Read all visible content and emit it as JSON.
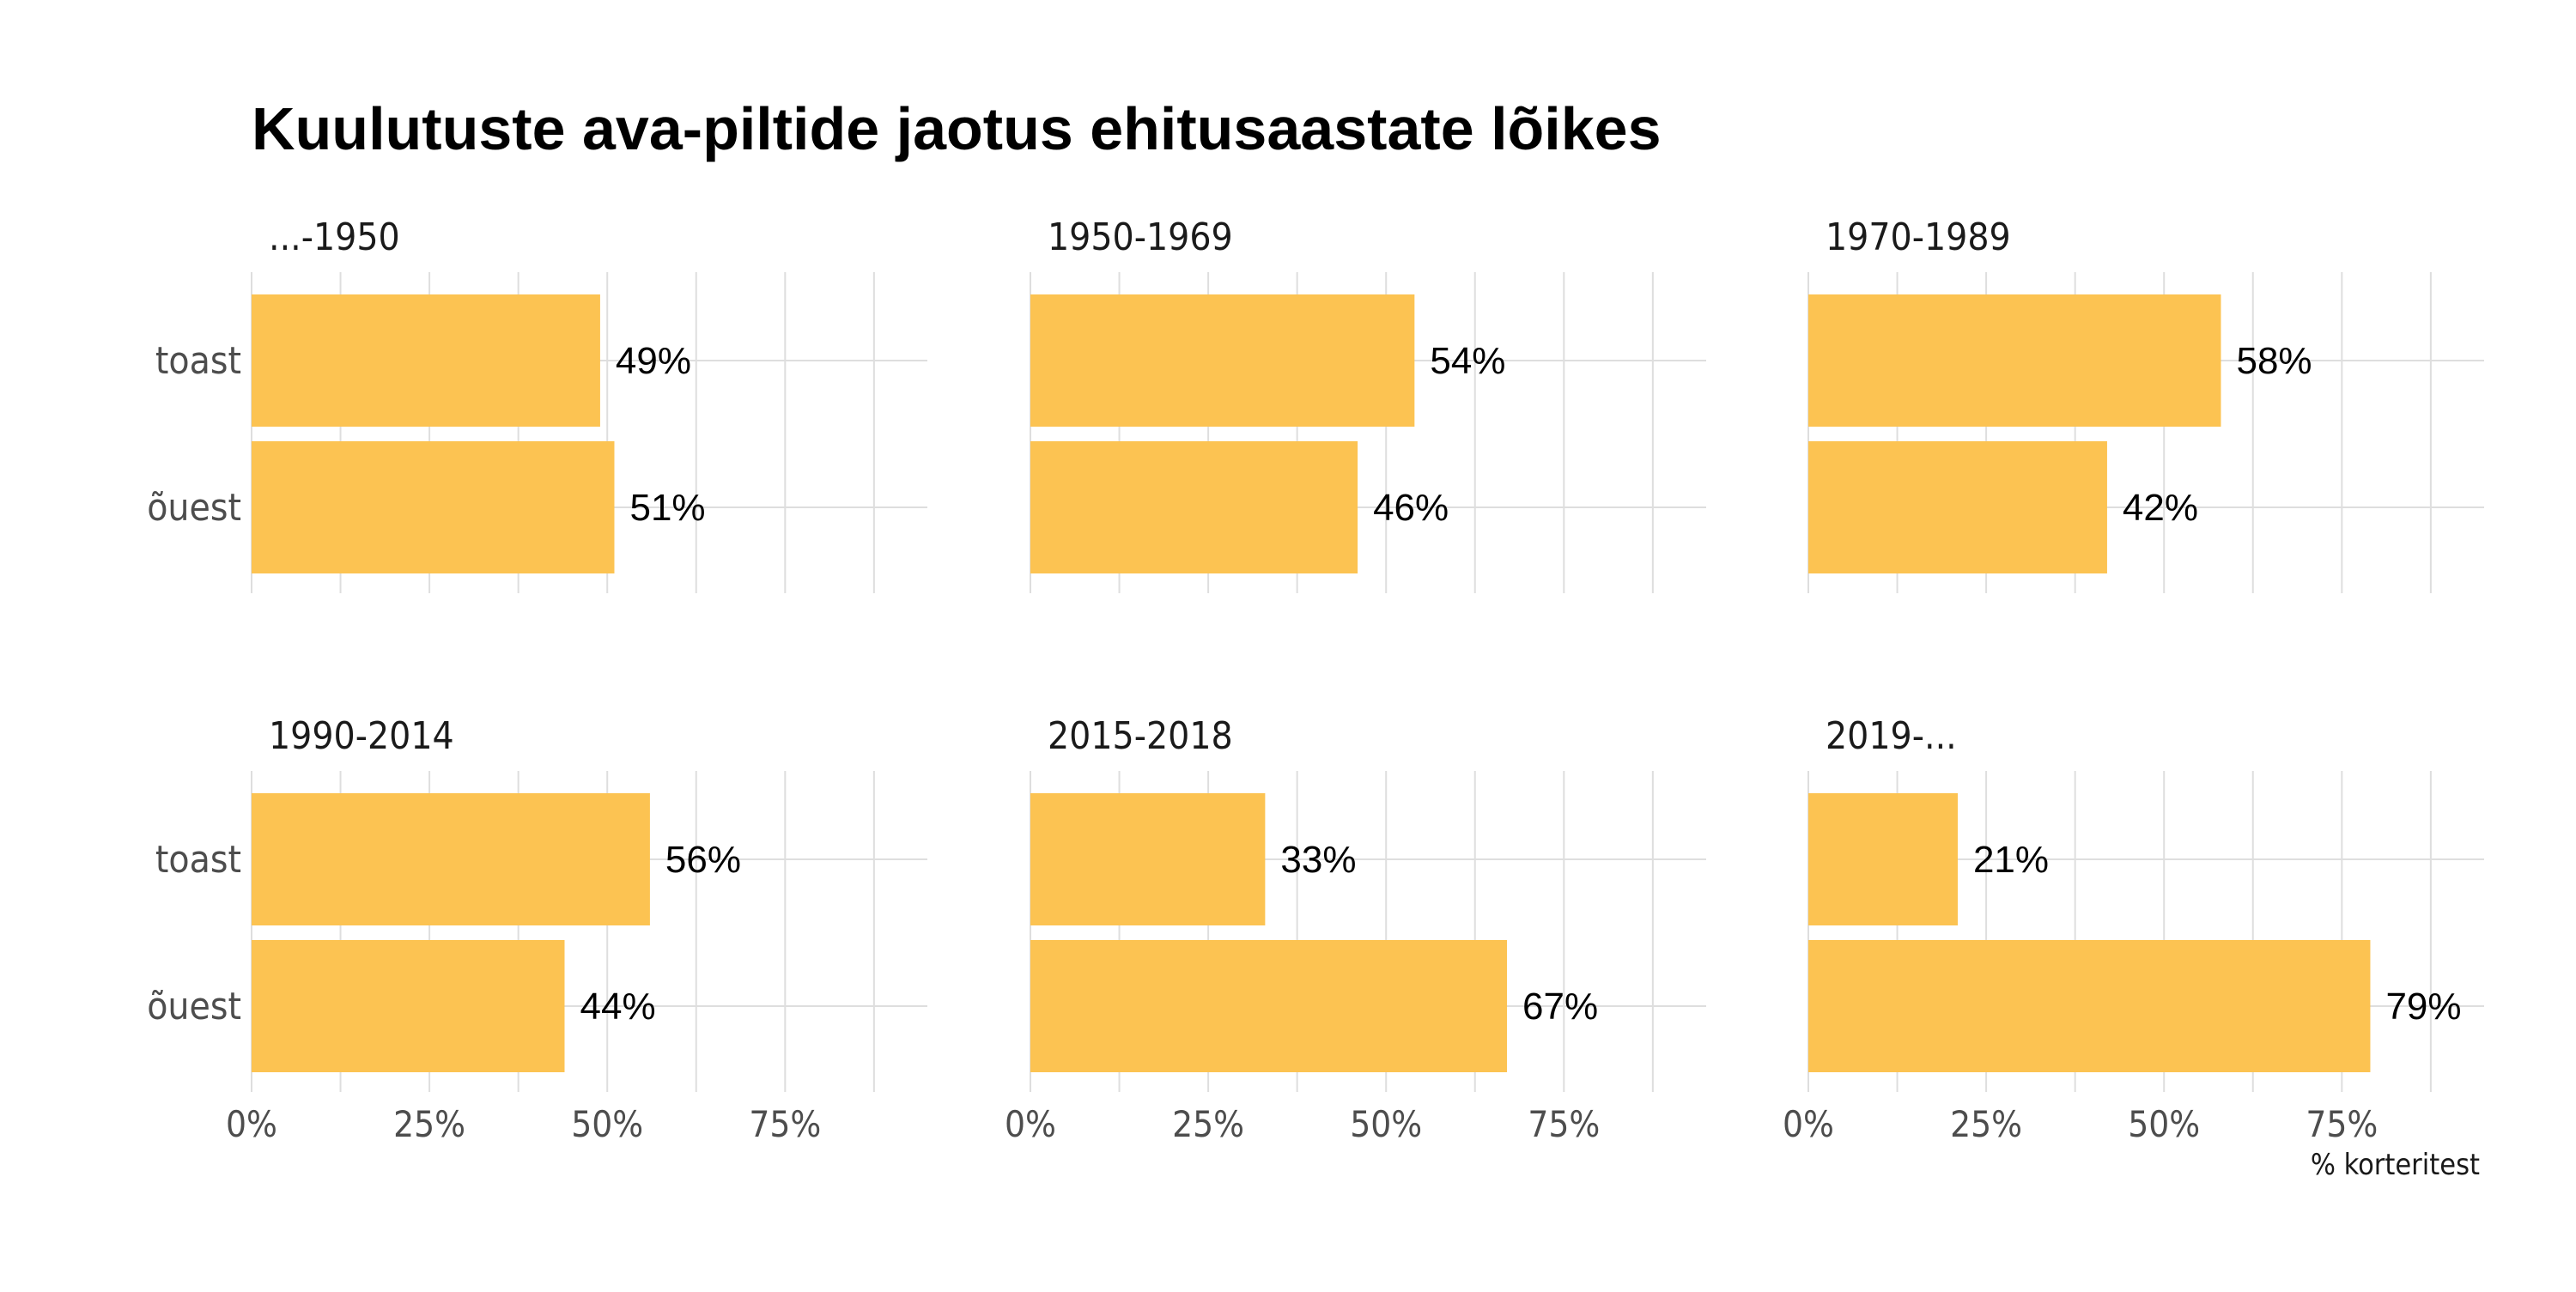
{
  "chart_data": {
    "type": "bar",
    "orientation": "horizontal",
    "layout": "facets 2 rows x 3 columns",
    "title": "Kuulutuste ava-piltide jaotus ehitusaastate lõikes",
    "xlabel": "% korteritest",
    "ylabel": "",
    "categories": [
      "toast",
      "õuest"
    ],
    "xlim": [
      0,
      95
    ],
    "xticks": [
      0,
      25,
      50,
      75
    ],
    "xtick_labels": [
      "0%",
      "25%",
      "50%",
      "75%"
    ],
    "grid": true,
    "legend": "none",
    "bar_color": "#FCC352",
    "facets": [
      {
        "name": "...-1950",
        "values": [
          49,
          51
        ],
        "labels": [
          "49%",
          "51%"
        ]
      },
      {
        "name": "1950-1969",
        "values": [
          54,
          46
        ],
        "labels": [
          "54%",
          "46%"
        ]
      },
      {
        "name": "1970-1989",
        "values": [
          58,
          42
        ],
        "labels": [
          "58%",
          "42%"
        ]
      },
      {
        "name": "1990-2014",
        "values": [
          56,
          44
        ],
        "labels": [
          "56%",
          "44%"
        ]
      },
      {
        "name": "2015-2018",
        "values": [
          33,
          67
        ],
        "labels": [
          "33%",
          "67%"
        ]
      },
      {
        "name": "2019-...",
        "values": [
          21,
          79
        ],
        "labels": [
          "21%",
          "79%"
        ]
      }
    ]
  },
  "colors": {
    "bar": "#FCC352",
    "grid": "#DEDEDE",
    "axis_text": "#4D4D4D",
    "title": "#000000",
    "label": "#1A1A1A"
  }
}
